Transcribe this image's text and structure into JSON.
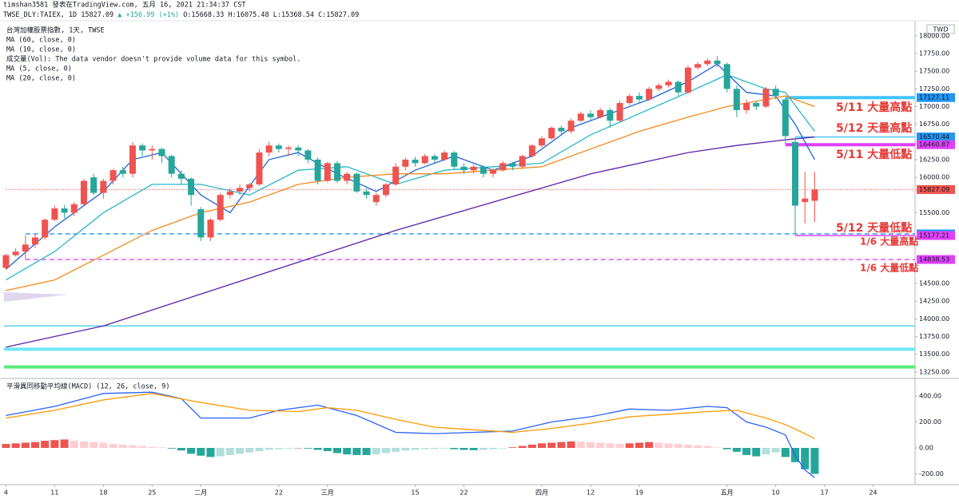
{
  "header": {
    "line1": "timshan3581 發表在TradingView.com, 五月 16, 2021 21:34:37 CST",
    "symbol": "TWSE_DLY:TAIEX, 1D 15827.09",
    "change": "▲ +156.99 (+1%)",
    "ohlc": "O:15668.33 H:16075.48 L:15368.54 C:15827.09"
  },
  "chart_data": [
    {
      "type": "candlestick",
      "title": "台灣加權股票指數, 1天, TWSE",
      "volume_note": "成交量(Vol): The data vendor doesn't provide volume data for this symbol.",
      "currency": "TWD",
      "up_color": "#ef5350",
      "down_color": "#26a69a",
      "xlim": [
        -0.2,
        93.3
      ],
      "xticks": [
        {
          "value": 0,
          "label": "4"
        },
        {
          "value": 5,
          "label": "11"
        },
        {
          "value": 10,
          "label": "18"
        },
        {
          "value": 15,
          "label": "25"
        },
        {
          "value": 20,
          "label": "二月"
        },
        {
          "value": 28,
          "label": "22"
        },
        {
          "value": 33,
          "label": "三月"
        },
        {
          "value": 42,
          "label": "15"
        },
        {
          "value": 47,
          "label": "22"
        },
        {
          "value": 55,
          "label": "四月"
        },
        {
          "value": 60,
          "label": "12"
        },
        {
          "value": 65,
          "label": "19"
        },
        {
          "value": 74,
          "label": "五月"
        },
        {
          "value": 79,
          "label": "10"
        },
        {
          "value": 84,
          "label": "17"
        },
        {
          "value": 89,
          "label": "24"
        }
      ],
      "ylim": [
        13180,
        18190
      ],
      "yticks": [
        {
          "value": 18000,
          "label": "18000.00"
        },
        {
          "value": 17750,
          "label": "17750.00"
        },
        {
          "value": 17500,
          "label": "17500.00"
        },
        {
          "value": 17250,
          "label": "17250.00"
        },
        {
          "value": 17000,
          "label": "17000.00"
        },
        {
          "value": 16750,
          "label": "16750.00"
        },
        {
          "value": 16500,
          "label": "16500.00"
        },
        {
          "value": 16250,
          "label": "16250.00"
        },
        {
          "value": 16000,
          "label": "16000.00"
        },
        {
          "value": 15500,
          "label": "15500.00"
        },
        {
          "value": 14500,
          "label": "14500.00"
        },
        {
          "value": 14250,
          "label": "14250.00"
        },
        {
          "value": 14000,
          "label": "14000.00"
        },
        {
          "value": 13750,
          "label": "13750.00"
        },
        {
          "value": 13500,
          "label": "13500.00"
        },
        {
          "value": 13250,
          "label": "13250.00"
        }
      ],
      "ohlc": [
        [
          14720,
          14920,
          14700,
          14900
        ],
        [
          14900,
          15000,
          14880,
          14950
        ],
        [
          14950,
          15177.21,
          14838.53,
          15050
        ],
        [
          15050,
          15200,
          15000,
          15150
        ],
        [
          15150,
          15420,
          15120,
          15400
        ],
        [
          15400,
          15600,
          15380,
          15560
        ],
        [
          15560,
          15610,
          15420,
          15500
        ],
        [
          15500,
          15650,
          15450,
          15620
        ],
        [
          15620,
          15980,
          15600,
          15950
        ],
        [
          16000,
          16050,
          15750,
          15780
        ],
        [
          15780,
          15980,
          15700,
          15950
        ],
        [
          15950,
          16120,
          15900,
          16100
        ],
        [
          16100,
          16150,
          16000,
          16050
        ],
        [
          16050,
          16500,
          16000,
          16450
        ],
        [
          16450,
          16480,
          16300,
          16380
        ],
        [
          16380,
          16450,
          16250,
          16400
        ],
        [
          16400,
          16420,
          16200,
          16300
        ],
        [
          16300,
          16320,
          16000,
          16050
        ],
        [
          16050,
          16100,
          15900,
          15980
        ],
        [
          15980,
          16000,
          15600,
          15750
        ],
        [
          15550,
          15580,
          15100,
          15150
        ],
        [
          15150,
          15420,
          15100,
          15400
        ],
        [
          15400,
          15780,
          15380,
          15750
        ],
        [
          15750,
          15850,
          15700,
          15800
        ],
        [
          15800,
          15900,
          15750,
          15850
        ],
        [
          15850,
          15920,
          15800,
          15900
        ],
        [
          15900,
          16400,
          15880,
          16350
        ],
        [
          16350,
          16500,
          16300,
          16450
        ],
        [
          16450,
          16480,
          16350,
          16400
        ],
        [
          16400,
          16450,
          16300,
          16420
        ],
        [
          16420,
          16450,
          16300,
          16380
        ],
        [
          16380,
          16400,
          16200,
          16250
        ],
        [
          16250,
          16280,
          15900,
          15950
        ],
        [
          15950,
          16220,
          15930,
          16200
        ],
        [
          16200,
          16230,
          15920,
          15950
        ],
        [
          15950,
          16080,
          15900,
          16050
        ],
        [
          16050,
          16070,
          15780,
          15800
        ],
        [
          15800,
          15850,
          15700,
          15750
        ],
        [
          15650,
          15780,
          15600,
          15750
        ],
        [
          15750,
          15920,
          15720,
          15900
        ],
        [
          15900,
          16200,
          15880,
          16150
        ],
        [
          16150,
          16280,
          16100,
          16250
        ],
        [
          16250,
          16290,
          16150,
          16200
        ],
        [
          16200,
          16330,
          16180,
          16300
        ],
        [
          16300,
          16330,
          16200,
          16250
        ],
        [
          16250,
          16380,
          16230,
          16350
        ],
        [
          16350,
          16370,
          16120,
          16150
        ],
        [
          16150,
          16200,
          16050,
          16100
        ],
        [
          16100,
          16180,
          16050,
          16150
        ],
        [
          16150,
          16170,
          16000,
          16050
        ],
        [
          16050,
          16130,
          16000,
          16100
        ],
        [
          16100,
          16230,
          16080,
          16200
        ],
        [
          16200,
          16220,
          16100,
          16150
        ],
        [
          16150,
          16320,
          16130,
          16300
        ],
        [
          16300,
          16470,
          16280,
          16450
        ],
        [
          16450,
          16580,
          16420,
          16550
        ],
        [
          16550,
          16720,
          16530,
          16700
        ],
        [
          16700,
          16730,
          16600,
          16650
        ],
        [
          16650,
          16830,
          16620,
          16800
        ],
        [
          16800,
          16930,
          16780,
          16900
        ],
        [
          16900,
          16950,
          16800,
          16850
        ],
        [
          16850,
          16980,
          16830,
          16950
        ],
        [
          16950,
          16980,
          16700,
          16800
        ],
        [
          16800,
          17080,
          16780,
          17050
        ],
        [
          17050,
          17180,
          17020,
          17150
        ],
        [
          17150,
          17200,
          17050,
          17100
        ],
        [
          17100,
          17280,
          17080,
          17250
        ],
        [
          17250,
          17330,
          17220,
          17300
        ],
        [
          17300,
          17380,
          17270,
          17350
        ],
        [
          17350,
          17370,
          17150,
          17200
        ],
        [
          17200,
          17580,
          17180,
          17550
        ],
        [
          17550,
          17630,
          17520,
          17600
        ],
        [
          17600,
          17680,
          17570,
          17650
        ],
        [
          17650,
          17710,
          17560,
          17600
        ],
        [
          17600,
          17620,
          17200,
          17250
        ],
        [
          17250,
          17300,
          16850,
          16950
        ],
        [
          16950,
          17100,
          16900,
          17050
        ],
        [
          17050,
          17080,
          16950,
          17000
        ],
        [
          17000,
          17280,
          16980,
          17250
        ],
        [
          17250,
          17300,
          17100,
          17150
        ],
        [
          17100,
          17127.11,
          16460.87,
          16583
        ],
        [
          16500,
          16570.44,
          15200.35,
          15600
        ],
        [
          15650,
          16080,
          15350,
          15700
        ],
        [
          15668.33,
          16075.48,
          15368.54,
          15827.09
        ]
      ],
      "series": [
        {
          "name": "MA (60, close, 0)",
          "color": "#5b1fa8",
          "x": [
            0,
            10,
            20,
            30,
            40,
            50,
            60,
            70,
            75,
            80,
            83
          ],
          "values": [
            13600,
            13900,
            14350,
            14800,
            15250,
            15650,
            16050,
            16350,
            16450,
            16530,
            16570
          ]
        },
        {
          "name": "MA (10, close, 0)",
          "color": "#26b6c9",
          "x": [
            0,
            5,
            10,
            15,
            20,
            25,
            30,
            35,
            40,
            45,
            50,
            55,
            60,
            65,
            70,
            74,
            78,
            80,
            83
          ],
          "values": [
            14550,
            14950,
            15500,
            15900,
            15900,
            15750,
            16100,
            16150,
            15900,
            16100,
            16150,
            16200,
            16600,
            16900,
            17200,
            17450,
            17250,
            17200,
            16650
          ]
        },
        {
          "name": "MA (5, close, 0)",
          "color": "#1e63d6",
          "x": [
            0,
            5,
            10,
            13,
            16,
            20,
            23,
            27,
            30,
            34,
            38,
            42,
            46,
            50,
            54,
            58,
            62,
            66,
            70,
            73,
            76,
            79,
            81,
            83
          ],
          "values": [
            14700,
            15300,
            15800,
            16250,
            16350,
            15750,
            15500,
            16250,
            16350,
            16050,
            15800,
            16100,
            16300,
            16100,
            16300,
            16700,
            16900,
            17100,
            17350,
            17600,
            17200,
            17150,
            16750,
            16250
          ]
        },
        {
          "name": "MA (20, close, 0)",
          "color": "#f2891f",
          "x": [
            0,
            5,
            10,
            15,
            20,
            25,
            30,
            35,
            40,
            45,
            50,
            55,
            60,
            65,
            70,
            74,
            78,
            80,
            83
          ],
          "values": [
            14400,
            14550,
            14900,
            15250,
            15500,
            15650,
            15900,
            16000,
            16050,
            16050,
            16100,
            16150,
            16400,
            16650,
            16850,
            17000,
            17100,
            17150,
            17000
          ]
        }
      ],
      "levels": [
        {
          "value": 17127.11,
          "color": "#40c4ff",
          "label_color": "#2196f3",
          "style": "solid",
          "weight": "thick",
          "start": 80,
          "axis_label": true
        },
        {
          "value": 16570.44,
          "color": "#40c4ff",
          "label_color": "#2196f3",
          "style": "solid",
          "weight": "thin",
          "start": 81,
          "axis_label": true
        },
        {
          "value": 16460.87,
          "color": "#e040fb",
          "label_color": "#e040fb",
          "style": "solid",
          "weight": "thick",
          "start": 80,
          "axis_label": true
        },
        {
          "value": 15827.09,
          "color": "#ef5350",
          "label_color": "#ef5350",
          "style": "dotted",
          "weight": "thin",
          "start": 0,
          "axis_label": true
        },
        {
          "value": 15200.35,
          "color": "#2196f3",
          "label_color": "#2196f3",
          "style": "dashed",
          "weight": "thin",
          "start": 2,
          "axis_label": true
        },
        {
          "value": 15177.21,
          "color": "#e040fb",
          "label_color": "#e040fb",
          "style": "solid",
          "weight": "thin",
          "start": 81,
          "axis_label": true
        },
        {
          "value": 14838.53,
          "color": "#e040fb",
          "label_color": "#e040fb",
          "style": "dashed",
          "weight": "thin",
          "start": 2,
          "axis_label": true
        },
        {
          "value": 13900,
          "color": "#4dd0e1",
          "style": "solid",
          "weight": "thin",
          "start": -0.2,
          "axis_label": false
        },
        {
          "value": 13570,
          "color": "#6ee7f7",
          "style": "solid",
          "weight": "thick",
          "start": -0.2,
          "axis_label": false
        },
        {
          "value": 13320,
          "color": "#5cec7a",
          "style": "solid",
          "weight": "thick",
          "start": -0.2,
          "axis_label": false
        }
      ],
      "annotations": [
        "5/11 大量高點",
        "5/12 天量高點",
        "5/11 大量低點",
        "5/12 天量低點",
        "1/6 大量高點",
        "1/6 大量低點"
      ]
    },
    {
      "type": "macd",
      "title": "平滑異同移動平均線(MACD) (12, 26, close, 9)",
      "ylim": [
        -271,
        511
      ],
      "yticks": [
        {
          "value": 400,
          "label": "400.00"
        },
        {
          "value": 200,
          "label": "200.00"
        },
        {
          "value": 0,
          "label": "0.00"
        },
        {
          "value": -200,
          "label": "-200.00"
        }
      ],
      "histogram_colors": [
        "#ef5350",
        "#ffcdd2",
        "#26a69a",
        "#b2dfdb"
      ],
      "histogram": [
        30,
        35,
        40,
        45,
        55,
        60,
        65,
        55,
        50,
        45,
        40,
        30,
        25,
        20,
        15,
        8,
        5,
        -5,
        -20,
        -45,
        -60,
        -70,
        -65,
        -55,
        -45,
        -35,
        -25,
        -15,
        -10,
        -5,
        0,
        -5,
        -15,
        -25,
        -40,
        -50,
        -55,
        -55,
        -50,
        -40,
        -30,
        -20,
        -15,
        -10,
        -8,
        -5,
        -10,
        -15,
        -18,
        -15,
        -10,
        -5,
        5,
        15,
        25,
        35,
        40,
        45,
        50,
        48,
        45,
        40,
        35,
        30,
        35,
        40,
        45,
        40,
        35,
        30,
        25,
        20,
        15,
        5,
        -10,
        -30,
        -55,
        -65,
        -50,
        -35,
        -70,
        -110,
        -165,
        -200
      ],
      "series": [
        {
          "color": "#2962ff",
          "x": [
            0,
            5,
            10,
            15,
            18,
            20,
            25,
            28,
            32,
            36,
            40,
            44,
            48,
            52,
            56,
            60,
            64,
            68,
            72,
            74,
            76,
            78,
            80,
            81,
            82,
            83
          ],
          "values": [
            250,
            320,
            420,
            430,
            380,
            230,
            230,
            290,
            330,
            250,
            120,
            110,
            120,
            130,
            200,
            240,
            300,
            290,
            320,
            310,
            200,
            160,
            100,
            -60,
            -170,
            -230
          ]
        },
        {
          "color": "#ff9800",
          "x": [
            0,
            5,
            10,
            15,
            20,
            25,
            30,
            33,
            36,
            40,
            44,
            48,
            52,
            56,
            60,
            64,
            68,
            72,
            75,
            78,
            80,
            82,
            83
          ],
          "values": [
            230,
            290,
            370,
            420,
            350,
            290,
            280,
            310,
            290,
            220,
            160,
            140,
            120,
            150,
            190,
            240,
            260,
            280,
            290,
            230,
            180,
            110,
            70
          ]
        }
      ]
    }
  ]
}
